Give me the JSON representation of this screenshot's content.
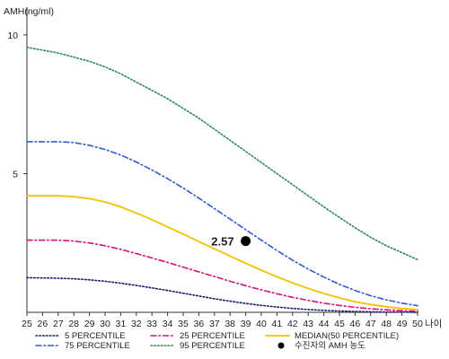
{
  "chart_data": {
    "type": "line",
    "ylabel": "AMH(ng/ml)",
    "xlabel": "나이",
    "xlim": [
      25,
      50
    ],
    "ylim": [
      0,
      11
    ],
    "yticks": [
      5,
      10
    ],
    "x": [
      25,
      26,
      27,
      28,
      29,
      30,
      31,
      32,
      33,
      34,
      35,
      36,
      37,
      38,
      39,
      40,
      41,
      42,
      43,
      44,
      45,
      46,
      47,
      48,
      49,
      50
    ],
    "series": [
      {
        "name": "5 PERCENTILE",
        "color": "#1a1a6e",
        "dash": "dotted",
        "values": [
          1.25,
          1.24,
          1.23,
          1.21,
          1.17,
          1.12,
          1.05,
          0.97,
          0.88,
          0.79,
          0.69,
          0.59,
          0.49,
          0.4,
          0.32,
          0.25,
          0.19,
          0.14,
          0.1,
          0.07,
          0.05,
          0.03,
          0.02,
          0.01,
          0.01,
          0.0
        ]
      },
      {
        "name": "25 PERCENTILE",
        "color": "#d4127a",
        "dash": "dashdot",
        "values": [
          2.6,
          2.6,
          2.6,
          2.57,
          2.5,
          2.4,
          2.27,
          2.12,
          1.96,
          1.8,
          1.63,
          1.46,
          1.29,
          1.12,
          0.96,
          0.81,
          0.67,
          0.54,
          0.43,
          0.33,
          0.25,
          0.18,
          0.13,
          0.09,
          0.06,
          0.04
        ]
      },
      {
        "name": "MEDIAN(50 PERCENTILE)",
        "color": "#f2c200",
        "dash": "solid",
        "values": [
          4.2,
          4.2,
          4.2,
          4.17,
          4.1,
          3.98,
          3.8,
          3.58,
          3.34,
          3.08,
          2.82,
          2.55,
          2.29,
          2.03,
          1.77,
          1.52,
          1.28,
          1.06,
          0.86,
          0.68,
          0.52,
          0.38,
          0.28,
          0.2,
          0.14,
          0.1
        ]
      },
      {
        "name": "75 PERCENTILE",
        "color": "#2f5bd1",
        "dash": "dashdot",
        "values": [
          6.15,
          6.15,
          6.15,
          6.12,
          6.02,
          5.87,
          5.67,
          5.42,
          5.13,
          4.82,
          4.48,
          4.12,
          3.74,
          3.36,
          2.98,
          2.6,
          2.23,
          1.88,
          1.56,
          1.27,
          1.01,
          0.79,
          0.6,
          0.45,
          0.33,
          0.24
        ]
      },
      {
        "name": "95 PERCENTILE",
        "color": "#2e8b57",
        "dash": "dotted",
        "values": [
          9.55,
          9.45,
          9.35,
          9.2,
          9.05,
          8.85,
          8.6,
          8.3,
          8.0,
          7.7,
          7.35,
          7.0,
          6.6,
          6.2,
          5.8,
          5.4,
          5.0,
          4.6,
          4.2,
          3.8,
          3.42,
          3.05,
          2.7,
          2.4,
          2.15,
          1.9
        ]
      }
    ],
    "point": {
      "name": "수진자의 AMH 농도",
      "x": 39,
      "y": 2.57,
      "label": "2.57",
      "color": "#000000"
    },
    "legend_position": "bottom",
    "grid": false
  }
}
